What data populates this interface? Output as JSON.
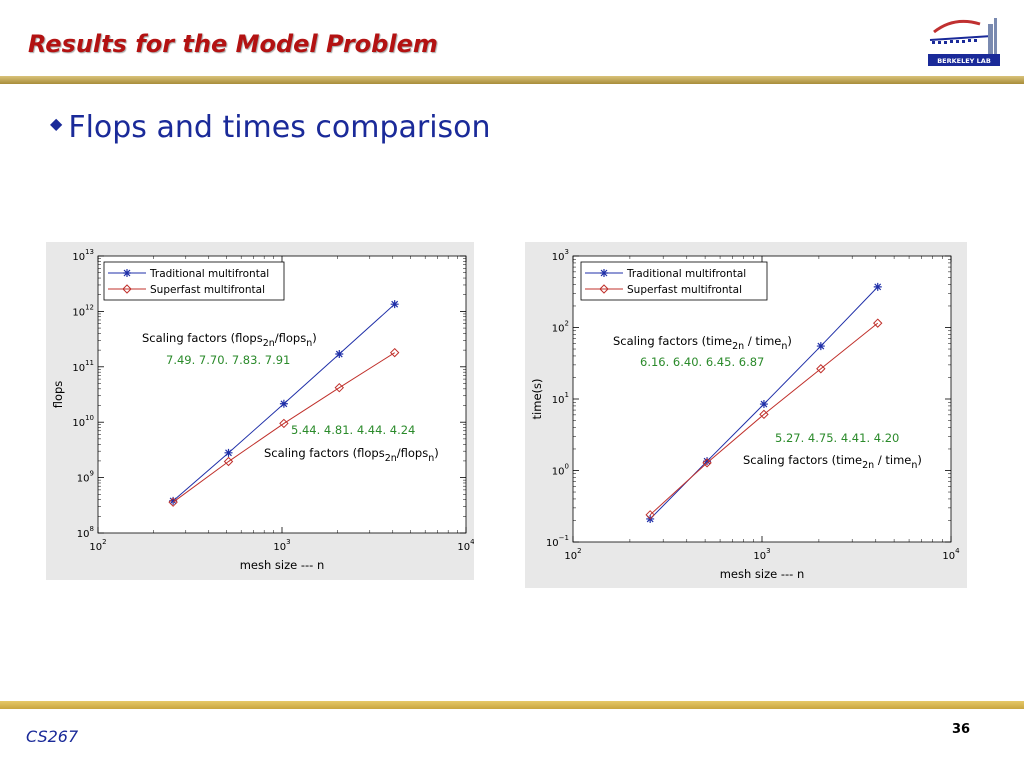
{
  "slide": {
    "title": "Results for the Model Problem",
    "bullet": "Flops and times comparison",
    "footer_left": "CS267",
    "page_number": "36",
    "logo_text": "BERKELEY LAB"
  },
  "colors": {
    "title": "#b31212",
    "bullet": "#1a2a99",
    "series_traditional": "#1f2fa8",
    "series_superfast": "#c0302b",
    "annotation_green": "#2a8a2a",
    "band": "#c9a640"
  },
  "chart_data": [
    {
      "type": "line",
      "xscale": "log",
      "yscale": "log",
      "xlim": [
        100,
        10000
      ],
      "ylim": [
        100000000.0,
        10000000000000.0
      ],
      "xlabel": "mesh size  ---  n",
      "ylabel": "flops",
      "xticks": [
        {
          "base": "10",
          "exp": "2"
        },
        {
          "base": "10",
          "exp": "3"
        },
        {
          "base": "10",
          "exp": "4"
        }
      ],
      "yticks": [
        {
          "base": "10",
          "exp": "8"
        },
        {
          "base": "10",
          "exp": "9"
        },
        {
          "base": "10",
          "exp": "10"
        },
        {
          "base": "10",
          "exp": "11"
        },
        {
          "base": "10",
          "exp": "12"
        },
        {
          "base": "10",
          "exp": "13"
        }
      ],
      "x": [
        256,
        512,
        1024,
        2048,
        4096
      ],
      "series": [
        {
          "name": "Traditional multifrontal",
          "marker": "star",
          "values": [
            380000000.0,
            2800000000.0,
            21500000000.0,
            170000000000.0,
            1350000000000.0
          ]
        },
        {
          "name": "Superfast multifrontal",
          "marker": "diamond",
          "values": [
            360000000.0,
            1950000000.0,
            9500000000.0,
            42000000000.0,
            180000000000.0
          ]
        }
      ],
      "legend": "top-left",
      "annotations": [
        {
          "kind": "label",
          "parts": [
            {
              "t": "Scaling factors (flops"
            },
            {
              "t": "2n",
              "sub": true
            },
            {
              "t": "/flops"
            },
            {
              "t": "n",
              "sub": true
            },
            {
              "t": ")"
            }
          ]
        },
        {
          "kind": "values",
          "text": "7.49. 7.70. 7.83. 7.91"
        },
        {
          "kind": "values",
          "text": "5.44. 4.81. 4.44. 4.24"
        },
        {
          "kind": "label",
          "parts": [
            {
              "t": "Scaling factors (flops"
            },
            {
              "t": "2n",
              "sub": true
            },
            {
              "t": "/flops"
            },
            {
              "t": "n",
              "sub": true
            },
            {
              "t": ")"
            }
          ]
        }
      ]
    },
    {
      "type": "line",
      "xscale": "log",
      "yscale": "log",
      "xlim": [
        100,
        10000
      ],
      "ylim": [
        0.1,
        1000
      ],
      "xlabel": "mesh size  ---  n",
      "ylabel": "time(s)",
      "xticks": [
        {
          "base": "10",
          "exp": "2"
        },
        {
          "base": "10",
          "exp": "3"
        },
        {
          "base": "10",
          "exp": "4"
        }
      ],
      "yticks": [
        {
          "base": "10",
          "exp": "−1"
        },
        {
          "base": "10",
          "exp": "0"
        },
        {
          "base": "10",
          "exp": "1"
        },
        {
          "base": "10",
          "exp": "2"
        },
        {
          "base": "10",
          "exp": "3"
        }
      ],
      "x": [
        256,
        512,
        1024,
        2048,
        4096
      ],
      "series": [
        {
          "name": "Traditional multifrontal",
          "marker": "star",
          "values": [
            0.21,
            1.35,
            8.5,
            55,
            370
          ]
        },
        {
          "name": "Superfast multifrontal",
          "marker": "diamond",
          "values": [
            0.24,
            1.28,
            6.1,
            26.5,
            115
          ]
        }
      ],
      "legend": "top-left",
      "annotations": [
        {
          "kind": "label",
          "parts": [
            {
              "t": "Scaling factors (time"
            },
            {
              "t": "2n",
              "sub": true
            },
            {
              "t": " / time"
            },
            {
              "t": "n",
              "sub": true
            },
            {
              "t": ")"
            }
          ]
        },
        {
          "kind": "values",
          "text": "6.16. 6.40. 6.45. 6.87"
        },
        {
          "kind": "values",
          "text": "5.27. 4.75. 4.41. 4.20"
        },
        {
          "kind": "label",
          "parts": [
            {
              "t": "Scaling factors (time"
            },
            {
              "t": "2n",
              "sub": true
            },
            {
              "t": " / time"
            },
            {
              "t": "n",
              "sub": true
            },
            {
              "t": ")"
            }
          ]
        }
      ]
    }
  ]
}
